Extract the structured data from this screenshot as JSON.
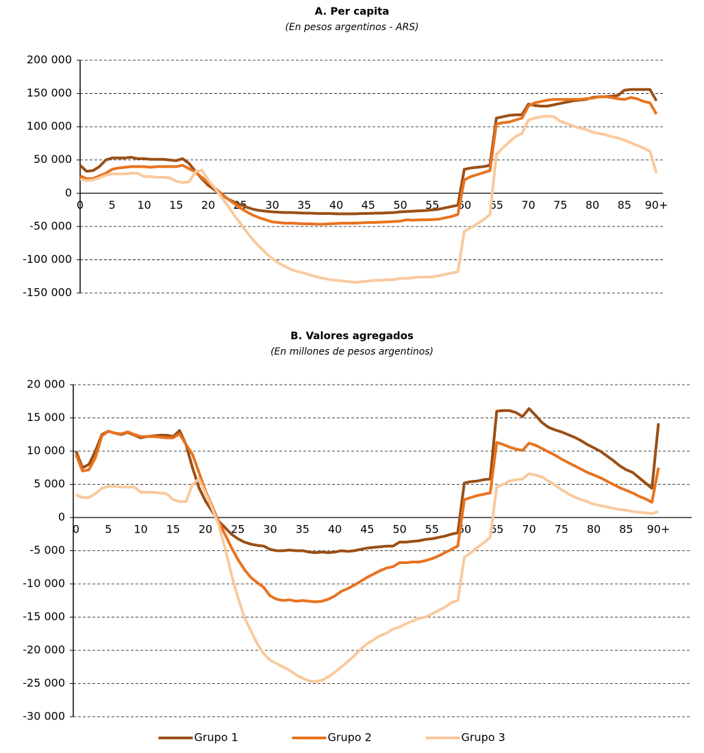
{
  "chart_data": [
    {
      "type": "line",
      "title": "A. Per capita",
      "subtitle": "(En pesos argentinos - ARS)",
      "categories": [
        "0",
        null,
        null,
        null,
        null,
        "5",
        null,
        null,
        null,
        null,
        "10",
        null,
        null,
        null,
        null,
        "15",
        null,
        null,
        null,
        null,
        "20",
        null,
        null,
        null,
        null,
        "25",
        null,
        null,
        null,
        null,
        "30",
        null,
        null,
        null,
        null,
        "35",
        null,
        null,
        null,
        null,
        "40",
        null,
        null,
        null,
        null,
        "45",
        null,
        null,
        null,
        null,
        "50",
        null,
        null,
        null,
        null,
        "55",
        null,
        null,
        null,
        null,
        "60",
        null,
        null,
        null,
        null,
        "65",
        null,
        null,
        null,
        null,
        "70",
        null,
        null,
        null,
        null,
        "75",
        null,
        null,
        null,
        null,
        "80",
        null,
        null,
        null,
        null,
        "85",
        null,
        null,
        null,
        null,
        "90+"
      ],
      "ylim": [
        -150000,
        200000
      ],
      "yticks": [
        {
          "value": -150000,
          "label": "-150 000"
        },
        {
          "value": -100000,
          "label": "-100 000"
        },
        {
          "value": -50000,
          "label": "-50 000"
        },
        0,
        {
          "value": 50000,
          "label": "50 000"
        },
        {
          "value": 100000,
          "label": "100 000"
        },
        {
          "value": 150000,
          "label": "150 000"
        },
        {
          "value": 200000,
          "label": "200 000"
        }
      ],
      "grid": true,
      "series": [
        {
          "color": "#9a4f16",
          "values": [
            42000,
            33000,
            34000,
            40000,
            50000,
            53000,
            53000,
            53000,
            54000,
            52000,
            52000,
            51000,
            51000,
            51000,
            50000,
            49000,
            52000,
            45000,
            33000,
            22000,
            12000,
            5000,
            -2000,
            -8000,
            -13000,
            -17000,
            -21000,
            -24000,
            -26000,
            -27000,
            -28000,
            -28500,
            -29000,
            -29000,
            -29500,
            -30000,
            -30000,
            -30500,
            -30500,
            -30500,
            -31000,
            -31000,
            -31000,
            -31000,
            -30500,
            -30500,
            -30000,
            -30000,
            -29500,
            -29000,
            -28000,
            -27500,
            -27000,
            -26500,
            -26000,
            -25000,
            -24000,
            -22000,
            -20000,
            -18000,
            36000,
            38000,
            39000,
            40000,
            42000,
            113000,
            115000,
            117000,
            118000,
            118000,
            134000,
            132000,
            131000,
            131000,
            133000,
            135000,
            137000,
            139000,
            140000,
            141000,
            144000,
            145000,
            145000,
            146000,
            147000,
            155000,
            156000,
            156000,
            156000,
            156000,
            139000
          ]
        },
        {
          "color": "#e8731f",
          "values": [
            26000,
            22000,
            22000,
            26000,
            30000,
            36000,
            38000,
            39000,
            40000,
            40000,
            40000,
            39000,
            40000,
            40000,
            40000,
            40000,
            42000,
            37000,
            32000,
            24000,
            16000,
            8000,
            0,
            -8000,
            -15000,
            -22000,
            -28000,
            -33000,
            -37000,
            -40000,
            -43000,
            -44000,
            -45000,
            -45000,
            -45500,
            -46000,
            -46000,
            -46500,
            -46500,
            -46000,
            -45500,
            -45000,
            -45000,
            -45000,
            -44500,
            -44000,
            -44000,
            -43500,
            -43000,
            -42500,
            -42000,
            -40000,
            -40500,
            -40000,
            -40000,
            -39500,
            -39000,
            -37000,
            -35000,
            -32000,
            20000,
            25000,
            28000,
            31000,
            34000,
            104000,
            106000,
            107000,
            110000,
            113000,
            131000,
            136000,
            138000,
            140000,
            141000,
            141000,
            141000,
            141000,
            141000,
            142000,
            143000,
            145000,
            145000,
            144000,
            142000,
            141000,
            144000,
            142000,
            138000,
            136000,
            119000
          ]
        },
        {
          "color": "#f9c99d",
          "values": [
            21000,
            19000,
            20000,
            23000,
            27000,
            29000,
            29000,
            29000,
            30000,
            30000,
            25000,
            25000,
            24000,
            24000,
            23000,
            18000,
            16000,
            17000,
            32000,
            35000,
            20000,
            8000,
            -5000,
            -18000,
            -32000,
            -45000,
            -58000,
            -70000,
            -80000,
            -90000,
            -98000,
            -105000,
            -110000,
            -115000,
            -118000,
            -120000,
            -123000,
            -126000,
            -128000,
            -130000,
            -131000,
            -132000,
            -133000,
            -134000,
            -133000,
            -132000,
            -131000,
            -131000,
            -130000,
            -130000,
            -128000,
            -128000,
            -127000,
            -126000,
            -126000,
            -126000,
            -124000,
            -122000,
            -120000,
            -118000,
            -57000,
            -52000,
            -46000,
            -40000,
            -32000,
            58000,
            68000,
            77000,
            85000,
            90000,
            110000,
            113000,
            115000,
            116000,
            115000,
            108000,
            105000,
            101000,
            98000,
            96000,
            92000,
            90000,
            88000,
            85000,
            83000,
            80000,
            76000,
            72000,
            68000,
            63000,
            30000
          ]
        }
      ]
    },
    {
      "type": "line",
      "title": "B. Valores agregados",
      "subtitle": "(En millones de pesos argentinos)",
      "categories": [
        "0",
        null,
        null,
        null,
        null,
        "5",
        null,
        null,
        null,
        null,
        "10",
        null,
        null,
        null,
        null,
        "15",
        null,
        null,
        null,
        null,
        "20",
        null,
        null,
        null,
        null,
        "25",
        null,
        null,
        null,
        null,
        "30",
        null,
        null,
        null,
        null,
        "35",
        null,
        null,
        null,
        null,
        "40",
        null,
        null,
        null,
        null,
        "45",
        null,
        null,
        null,
        null,
        "50",
        null,
        null,
        null,
        null,
        "55",
        null,
        null,
        null,
        null,
        "60",
        null,
        null,
        null,
        null,
        "65",
        null,
        null,
        null,
        null,
        "70",
        null,
        null,
        null,
        null,
        "75",
        null,
        null,
        null,
        null,
        "80",
        null,
        null,
        null,
        null,
        "85",
        null,
        null,
        null,
        null,
        "90+"
      ],
      "ylim": [
        -30000,
        20000
      ],
      "yticks": [
        {
          "value": -30000,
          "label": "-30 000"
        },
        {
          "value": -25000,
          "label": "-25 000"
        },
        {
          "value": -20000,
          "label": "-20 000"
        },
        {
          "value": -15000,
          "label": "-15 000"
        },
        {
          "value": -10000,
          "label": "-10 000"
        },
        {
          "value": -5000,
          "label": "-5 000"
        },
        0,
        {
          "value": 5000,
          "label": "5 000"
        },
        {
          "value": 10000,
          "label": "10 000"
        },
        {
          "value": 15000,
          "label": "15 000"
        },
        {
          "value": 20000,
          "label": "20 000"
        }
      ],
      "grid": true,
      "legend": "bottom",
      "series": [
        {
          "name": "Grupo 1",
          "color": "#9a4f16",
          "values": [
            10000,
            7500,
            8000,
            10000,
            12500,
            13000,
            12700,
            12500,
            12800,
            12400,
            12000,
            12200,
            12300,
            12400,
            12400,
            12200,
            13100,
            11000,
            7500,
            4500,
            2500,
            1000,
            -500,
            -1500,
            -2500,
            -3200,
            -3700,
            -4000,
            -4200,
            -4300,
            -4800,
            -5000,
            -5000,
            -4900,
            -5000,
            -5000,
            -5200,
            -5300,
            -5200,
            -5300,
            -5200,
            -5000,
            -5100,
            -5000,
            -4800,
            -4600,
            -4500,
            -4400,
            -4300,
            -4300,
            -3700,
            -3700,
            -3600,
            -3500,
            -3300,
            -3200,
            -3000,
            -2800,
            -2500,
            -2300,
            5200,
            5400,
            5500,
            5700,
            5800,
            16000,
            16100,
            16100,
            15800,
            15200,
            16400,
            15400,
            14300,
            13600,
            13200,
            12900,
            12500,
            12100,
            11600,
            11000,
            10500,
            10000,
            9300,
            8600,
            7800,
            7200,
            6800,
            6000,
            5200,
            4400,
            14200
          ]
        },
        {
          "name": "Grupo 2",
          "color": "#e8731f",
          "values": [
            9500,
            7000,
            7200,
            9000,
            12300,
            13000,
            12700,
            12600,
            12900,
            12500,
            12200,
            12200,
            12200,
            12100,
            12000,
            12000,
            12600,
            11000,
            9500,
            6800,
            4000,
            1800,
            -500,
            -2500,
            -4500,
            -6300,
            -7800,
            -9000,
            -9800,
            -10500,
            -11800,
            -12300,
            -12500,
            -12400,
            -12600,
            -12500,
            -12600,
            -12700,
            -12600,
            -12300,
            -11800,
            -11100,
            -10700,
            -10200,
            -9600,
            -9000,
            -8500,
            -8000,
            -7600,
            -7400,
            -6800,
            -6800,
            -6700,
            -6700,
            -6500,
            -6200,
            -5800,
            -5300,
            -4800,
            -4300,
            2700,
            3000,
            3300,
            3500,
            3700,
            11300,
            11000,
            10600,
            10300,
            10100,
            11200,
            10900,
            10400,
            9900,
            9400,
            8800,
            8300,
            7800,
            7300,
            6800,
            6400,
            6000,
            5500,
            5000,
            4500,
            4100,
            3700,
            3200,
            2800,
            2300,
            7500
          ]
        },
        {
          "name": "Grupo 3",
          "color": "#f9c99d",
          "values": [
            3400,
            3000,
            3000,
            3600,
            4400,
            4700,
            4700,
            4600,
            4600,
            4600,
            3800,
            3800,
            3800,
            3700,
            3600,
            2700,
            2400,
            2400,
            5000,
            5800,
            3700,
            1500,
            -1000,
            -4500,
            -8500,
            -12000,
            -15000,
            -17000,
            -19000,
            -20500,
            -21500,
            -22000,
            -22500,
            -23000,
            -23700,
            -24200,
            -24600,
            -24700,
            -24500,
            -24000,
            -23300,
            -22500,
            -21700,
            -20800,
            -19800,
            -19000,
            -18400,
            -17800,
            -17400,
            -16800,
            -16500,
            -16000,
            -15600,
            -15200,
            -15000,
            -14500,
            -14000,
            -13500,
            -12800,
            -12500,
            -6000,
            -5300,
            -4500,
            -3800,
            -3000,
            4600,
            5000,
            5500,
            5700,
            5800,
            6600,
            6400,
            6100,
            5500,
            4900,
            4200,
            3600,
            3100,
            2700,
            2400,
            2000,
            1800,
            1600,
            1400,
            1200,
            1100,
            900,
            800,
            700,
            600,
            900
          ]
        }
      ]
    }
  ]
}
